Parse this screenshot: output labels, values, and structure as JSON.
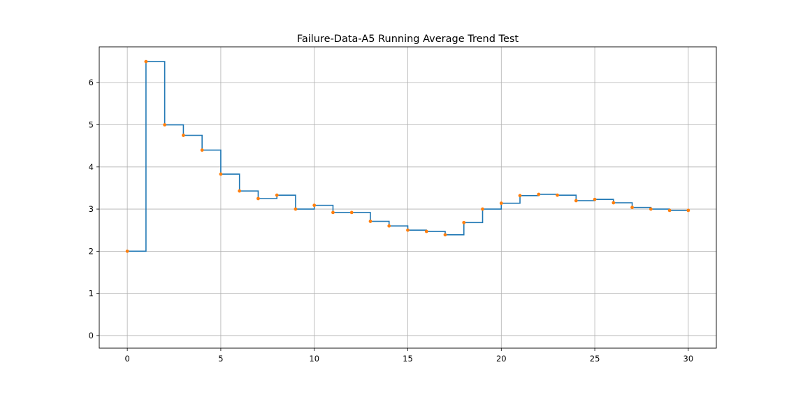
{
  "chart_data": {
    "type": "line",
    "title": "Failure-Data-A5 Running Average Trend Test",
    "xlabel": "",
    "ylabel": "",
    "xlim": [
      -1.5,
      31.5
    ],
    "ylim": [
      -0.3,
      6.85
    ],
    "x_ticks": [
      0,
      5,
      10,
      15,
      20,
      25,
      30
    ],
    "y_ticks": [
      0,
      1,
      2,
      3,
      4,
      5,
      6
    ],
    "grid": true,
    "step": "post",
    "x": [
      0,
      1,
      2,
      3,
      4,
      5,
      6,
      7,
      8,
      9,
      10,
      11,
      12,
      13,
      14,
      15,
      16,
      17,
      18,
      19,
      20,
      21,
      22,
      23,
      24,
      25,
      26,
      27,
      28,
      29,
      30
    ],
    "series": [
      {
        "values": [
          2.0,
          6.5,
          5.0,
          4.75,
          4.4,
          3.83,
          3.43,
          3.25,
          3.33,
          3.0,
          3.09,
          2.92,
          2.92,
          2.71,
          2.6,
          2.5,
          2.47,
          2.39,
          2.68,
          3.0,
          3.14,
          3.32,
          3.35,
          3.33,
          3.2,
          3.23,
          3.15,
          3.04,
          3.0,
          2.97,
          2.97
        ],
        "line_color": "#1f77b4",
        "marker_color": "#ff7f0e"
      }
    ]
  }
}
